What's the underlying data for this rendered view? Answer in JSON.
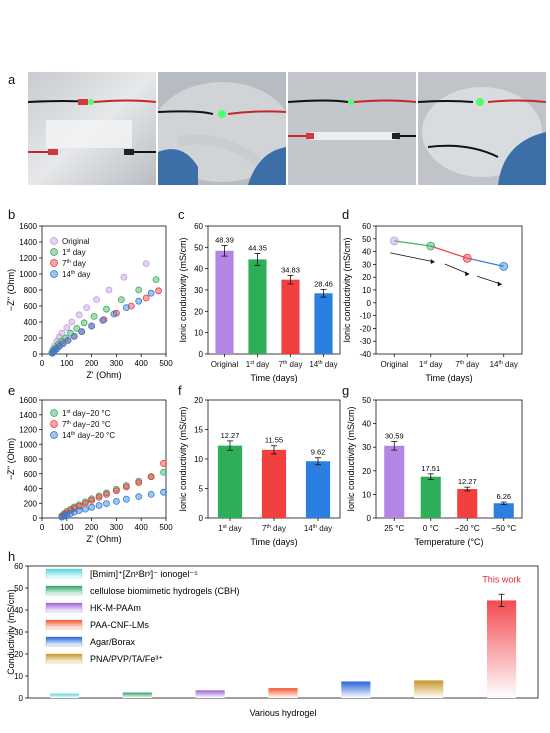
{
  "panel_labels": [
    "a",
    "b",
    "c",
    "d",
    "e",
    "f",
    "g",
    "h"
  ],
  "colors": {
    "original": "#c39be8",
    "day1": "#3aae5f",
    "day7": "#f0393c",
    "day14": "#2c7ed6",
    "purple_bar": "#b585e6",
    "green_bar": "#2fae5a",
    "red_bar": "#f23f3f",
    "blue_bar": "#2b7fe0"
  },
  "chart_data": [
    {
      "id": "b",
      "type": "scatter",
      "xlabel": "Z' (Ohm)",
      "ylabel": "−Z'' (Ohm)",
      "xlim": [
        0,
        500
      ],
      "ylim": [
        0,
        1600
      ],
      "xticks": [
        "0",
        "100",
        "200",
        "300",
        "400",
        "500"
      ],
      "yticks": [
        "0",
        "200",
        "400",
        "600",
        "800",
        "1000",
        "1200",
        "1400",
        "1600"
      ],
      "legend": [
        "Original",
        "1st day",
        "7th day",
        "14th day"
      ],
      "legend_sup": [
        "",
        "st",
        "th",
        "th"
      ],
      "legend_base": [
        "Original",
        "1",
        "7",
        "14"
      ],
      "legend_tail": [
        "",
        " day",
        " day",
        " day"
      ],
      "series": [
        {
          "name": "Original",
          "x": [
            40,
            45,
            50,
            60,
            70,
            80,
            100,
            120,
            150,
            180,
            220,
            270,
            330,
            420
          ],
          "y": [
            20,
            60,
            100,
            160,
            210,
            260,
            330,
            400,
            490,
            580,
            680,
            800,
            960,
            1130
          ]
        },
        {
          "name": "1st day",
          "x": [
            40,
            45,
            55,
            65,
            80,
            95,
            115,
            140,
            170,
            210,
            260,
            320,
            390,
            460
          ],
          "y": [
            15,
            45,
            80,
            120,
            160,
            200,
            260,
            320,
            390,
            470,
            560,
            680,
            800,
            930
          ]
        },
        {
          "name": "7th day",
          "x": [
            42,
            48,
            58,
            70,
            85,
            105,
            130,
            160,
            200,
            250,
            300,
            360,
            420,
            470
          ],
          "y": [
            10,
            35,
            60,
            95,
            130,
            170,
            220,
            280,
            350,
            430,
            510,
            600,
            700,
            790
          ]
        },
        {
          "name": "14th day",
          "x": [
            42,
            48,
            58,
            70,
            85,
            105,
            130,
            160,
            200,
            245,
            290,
            340,
            390,
            440
          ],
          "y": [
            10,
            35,
            60,
            95,
            130,
            170,
            220,
            280,
            350,
            420,
            500,
            580,
            660,
            760
          ]
        }
      ]
    },
    {
      "id": "c",
      "type": "bar",
      "ylabel": "Ionic conductivity (mS/cm)",
      "xlabel": "Time (days)",
      "ylim": [
        0,
        60
      ],
      "yticks": [
        "0",
        "10",
        "20",
        "30",
        "40",
        "50",
        "60"
      ],
      "categories": [
        "Original",
        "1st day",
        "7th day",
        "14th day"
      ],
      "cat_base": [
        "Original",
        "1",
        "7",
        "14"
      ],
      "cat_sup": [
        "",
        "st",
        "th",
        "th"
      ],
      "cat_tail": [
        "",
        " day",
        " day",
        " day"
      ],
      "values": [
        48.39,
        44.35,
        34.83,
        28.46
      ],
      "errors": [
        2.5,
        2.8,
        2.0,
        1.8
      ],
      "labels": [
        "48.39",
        "44.35",
        "34.83",
        "28.46"
      ]
    },
    {
      "id": "d",
      "type": "line",
      "ylabel": "Ionic conductivity (mS/cm)",
      "xlabel": "Time (days)",
      "ylim": [
        -40,
        60
      ],
      "yticks": [
        "-40",
        "-30",
        "-20",
        "-10",
        "0",
        "10",
        "20",
        "30",
        "40",
        "50",
        "60"
      ],
      "categories": [
        "Original",
        "1st day",
        "7th day",
        "14th day"
      ],
      "cat_base": [
        "Original",
        "1",
        "7",
        "14"
      ],
      "cat_sup": [
        "",
        "st",
        "th",
        "th"
      ],
      "cat_tail": [
        "",
        " day",
        " day",
        " day"
      ],
      "values": [
        48.39,
        44.35,
        34.83,
        28.46
      ]
    },
    {
      "id": "e",
      "type": "scatter",
      "xlabel": "Z' (Ohm)",
      "ylabel": "−Z'' (Ohm)",
      "xlim": [
        0,
        500
      ],
      "ylim": [
        0,
        1600
      ],
      "xticks": [
        "0",
        "100",
        "200",
        "300",
        "400",
        "500"
      ],
      "yticks": [
        "0",
        "200",
        "400",
        "600",
        "800",
        "1000",
        "1200",
        "1400",
        "1600"
      ],
      "legend": [
        "1st day−20 °C",
        "7th day−20 °C",
        "14th day−20 °C"
      ],
      "legend_base": [
        "1",
        "7",
        "14"
      ],
      "legend_sup": [
        "st",
        "th",
        "th"
      ],
      "legend_tail": [
        " day−20 °C",
        " day−20 °C",
        " day−20 °C"
      ],
      "series": [
        {
          "name": "1st day−20 °C",
          "x": [
            80,
            90,
            100,
            115,
            130,
            150,
            175,
            200,
            230,
            260,
            300,
            340,
            390,
            440,
            490
          ],
          "y": [
            30,
            60,
            90,
            120,
            150,
            180,
            220,
            260,
            300,
            340,
            390,
            440,
            500,
            560,
            620
          ]
        },
        {
          "name": "7th day−20 °C",
          "x": [
            80,
            90,
            100,
            115,
            130,
            150,
            175,
            200,
            230,
            260,
            300,
            340,
            390,
            440,
            490
          ],
          "y": [
            20,
            45,
            70,
            100,
            130,
            160,
            200,
            240,
            280,
            320,
            370,
            420,
            480,
            560,
            740
          ]
        },
        {
          "name": "14th day−20 °C",
          "x": [
            80,
            90,
            100,
            115,
            130,
            150,
            175,
            200,
            230,
            260,
            300,
            340,
            390,
            440,
            490
          ],
          "y": [
            10,
            25,
            40,
            60,
            80,
            100,
            120,
            145,
            170,
            195,
            225,
            255,
            290,
            320,
            350
          ]
        }
      ]
    },
    {
      "id": "f",
      "type": "bar",
      "ylabel": "Ionic conductivity (mS/cm)",
      "xlabel": "Time (days)",
      "ylim": [
        0,
        20
      ],
      "yticks": [
        "0",
        "5",
        "10",
        "15",
        "20"
      ],
      "categories": [
        "1st day",
        "7th day",
        "14th day"
      ],
      "cat_base": [
        "1",
        "7",
        "14"
      ],
      "cat_sup": [
        "st",
        "th",
        "th"
      ],
      "cat_tail": [
        " day",
        " day",
        " day"
      ],
      "values": [
        12.27,
        11.55,
        9.62
      ],
      "errors": [
        0.8,
        0.7,
        0.6
      ],
      "labels": [
        "12.27",
        "11.55",
        "9.62"
      ]
    },
    {
      "id": "g",
      "type": "bar",
      "ylabel": "Ionic conductivity (mS/cm)",
      "xlabel": "Temperature (°C)",
      "ylim": [
        0,
        50
      ],
      "yticks": [
        "0",
        "10",
        "20",
        "30",
        "40",
        "50"
      ],
      "categories": [
        "25 °C",
        "0 °C",
        "−20 °C",
        "−50 °C"
      ],
      "values": [
        30.59,
        17.51,
        12.27,
        6.26
      ],
      "errors": [
        1.8,
        1.2,
        0.8,
        0.5
      ],
      "labels": [
        "30.59",
        "17.51",
        "12.27",
        "6.26"
      ]
    },
    {
      "id": "h",
      "type": "bar",
      "ylabel": "Conductivity (mS/cm)",
      "xlabel": "Various hydrogel",
      "ylim": [
        0,
        60
      ],
      "yticks": [
        "0",
        "10",
        "20",
        "30",
        "40",
        "50",
        "60"
      ],
      "legend": [
        "[Bmim]+[ZnxBry]− ionogel",
        "cellulose biomimetic hydrogels (CBH)",
        "HK-M-PAAm",
        "PAA-CNF-LMs",
        "Agar/Borax",
        "PNA/PVP/TA/Fe3+"
      ],
      "legend_display": [
        "[Bmim]⁺[ZnˣBrʸ]⁻ ionogel⁻⁵",
        "cellulose biomimetic hydrogels (CBH)",
        "HK-M-PAAm",
        "PAA-CNF-LMs",
        "Agar/Borax",
        "PNA/PVP/TA/Fe³⁺"
      ],
      "categories": [
        "[Bmim]+[ZnxBry]− ionogel",
        "cellulose biomimetic hydrogels (CBH)",
        "HK-M-PAAm",
        "PAA-CNF-LMs",
        "Agar/Borax",
        "PNA/PVP/TA/Fe3+",
        "This work"
      ],
      "values": [
        2.0,
        2.5,
        3.5,
        4.5,
        7.5,
        8.0,
        44.35
      ],
      "errors": [
        0,
        0,
        0,
        0,
        0,
        0,
        2.8
      ],
      "annotation": "This work",
      "bar_colors": [
        "#4fd7dc",
        "#2ba561",
        "#9a63d9",
        "#f15a30",
        "#2664d8",
        "#c8962a",
        "#f24a50"
      ]
    }
  ]
}
